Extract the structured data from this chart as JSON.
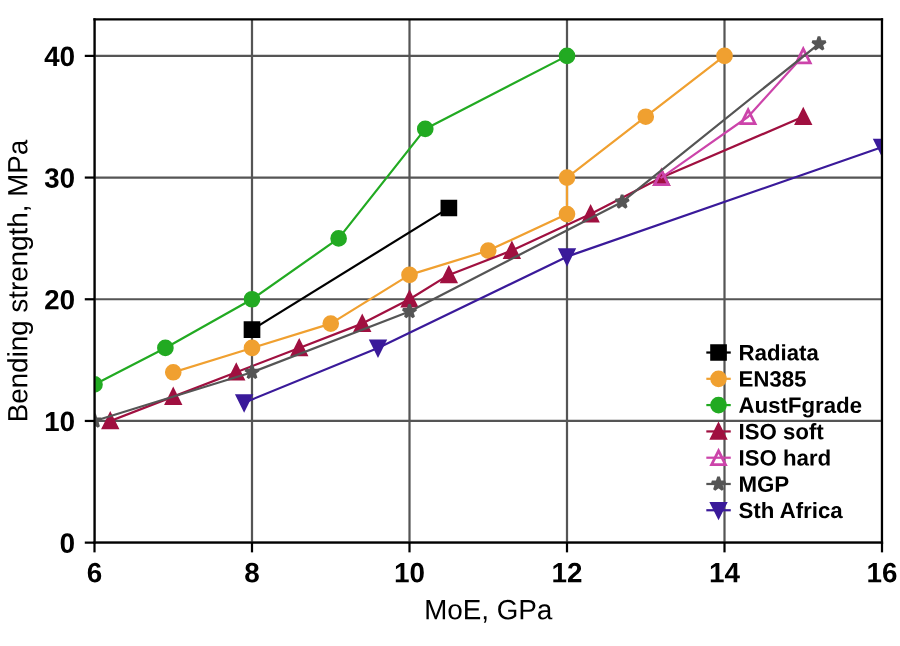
{
  "chart_data": {
    "type": "line",
    "xlabel": "MoE, GPa",
    "ylabel": "Bending strength, MPa",
    "xlim": [
      6,
      16
    ],
    "xticks": [
      6,
      8,
      10,
      12,
      14,
      16
    ],
    "ylim": [
      0,
      43
    ],
    "yticks": [
      0,
      10,
      20,
      30,
      40
    ],
    "grid": true,
    "legend": "bottom right",
    "series": [
      {
        "name": "Radiata",
        "color": "#000000",
        "marker": "square",
        "x": [
          8,
          10.5
        ],
        "values": [
          17.5,
          27.5
        ]
      },
      {
        "name": "EN385",
        "color": "#f0a030",
        "marker": "circle",
        "x": [
          7,
          8,
          9,
          10,
          11,
          12,
          12,
          13,
          14
        ],
        "values": [
          14,
          16,
          18,
          22,
          24,
          27,
          30,
          35,
          40
        ]
      },
      {
        "name": "AustFgrade",
        "color": "#22aa22",
        "marker": "circle",
        "x": [
          6,
          6.9,
          8,
          9.1,
          10.2,
          12
        ],
        "values": [
          13,
          16,
          20,
          25,
          34,
          40
        ]
      },
      {
        "name": "ISO soft",
        "color": "#a01040",
        "marker": "triangle",
        "x": [
          6.2,
          7,
          7.8,
          8.6,
          9.4,
          10,
          10.5,
          11.3,
          12.3,
          13.2,
          15
        ],
        "values": [
          10,
          12,
          14,
          16,
          18,
          20,
          22,
          24,
          27,
          30,
          35
        ]
      },
      {
        "name": "ISO hard",
        "color": "#cc44aa",
        "marker": "triangle_open",
        "x": [
          13.2,
          14.3,
          15
        ],
        "values": [
          30,
          35,
          40
        ]
      },
      {
        "name": "MGP",
        "color": "#555555",
        "marker": "star",
        "x": [
          6,
          8,
          10,
          12.7,
          15.2
        ],
        "values": [
          10,
          14,
          19,
          28,
          41
        ]
      },
      {
        "name": "Sth Africa",
        "color": "#3a1a9a",
        "marker": "triangle_down",
        "x": [
          7.9,
          9.6,
          12,
          16
        ],
        "values": [
          11.5,
          16,
          23.5,
          32.5
        ]
      }
    ]
  }
}
